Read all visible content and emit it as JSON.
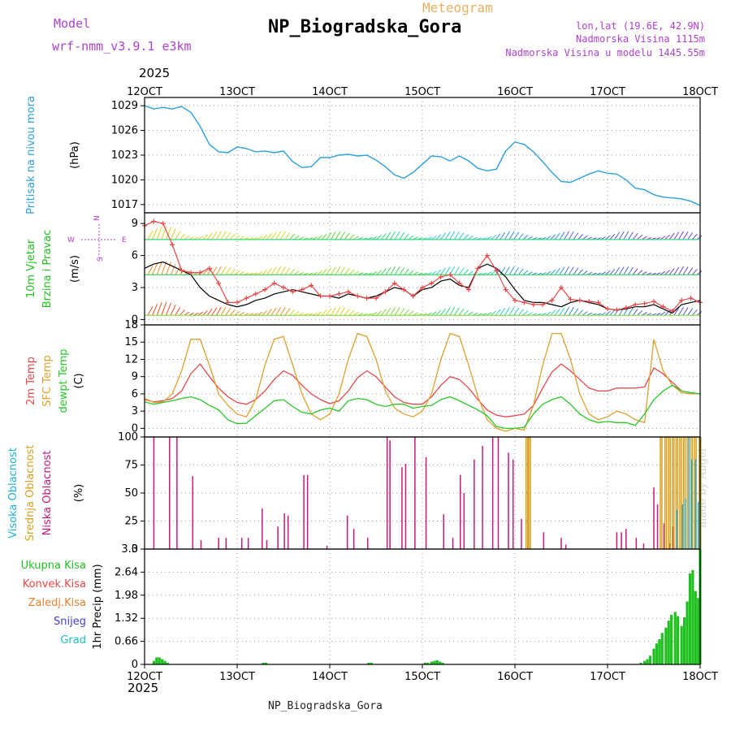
{
  "header": {
    "title": "NP_Biogradska_Gora",
    "subtitle": "Meteogram",
    "model_label": "Model",
    "model_name": "wrf-nmm_v3.9.1 e3km",
    "lonlat": "lon,lat (19.6E, 42.9N)",
    "altitude": "Nadmorska Visina 1115m",
    "model_altitude": "Nadmorska Visina u modelu 1445.55m",
    "year_top": "2025",
    "year_bottom": "2025",
    "footer": "NP_Biogradska_Gora",
    "credit": "made by Angel"
  },
  "legend_wind": {
    "north": "N",
    "west": "W",
    "east": "E",
    "south": "S"
  },
  "colors": {
    "pressure": "#2aa0e0",
    "temp2m": "#e84848",
    "sfc": "#e0a030",
    "dewpt": "#28c828",
    "low_cloud": "#c81878",
    "mid_cloud": "#d8a020",
    "high_cloud": "#20b0d8",
    "precip": "#20c020",
    "title_purple": "#b040d0",
    "meteogram_orange": "#e8b060"
  },
  "chart_data": [
    {
      "type": "line",
      "panel": "pressure",
      "ylabel": "(hPa)",
      "side_labels": [
        "Pritisak na nivou mora"
      ],
      "x_ticks": [
        "12OCT",
        "13OCT",
        "14OCT",
        "15OCT",
        "16OCT",
        "17OCT",
        "18OCT"
      ],
      "ylim": [
        1016,
        1030
      ],
      "yticks": [
        "1029",
        "1026",
        "1023",
        "1020",
        "1017"
      ],
      "x": [
        0,
        1,
        2,
        3,
        4,
        5,
        6,
        7,
        8,
        9,
        10,
        11,
        12,
        13,
        14,
        15,
        16,
        17,
        18,
        19,
        20,
        21,
        22,
        23,
        24,
        25,
        26,
        27,
        28,
        29,
        30,
        31,
        32,
        33,
        34,
        35,
        36,
        37,
        38,
        39,
        40,
        41,
        42,
        43,
        44,
        45,
        46,
        47,
        48,
        49,
        50,
        51,
        52,
        53,
        54,
        55,
        56,
        57,
        58,
        59,
        60
      ],
      "values": [
        1029,
        1028.6,
        1028.8,
        1028.6,
        1028.9,
        1028.2,
        1026.5,
        1024.3,
        1023.4,
        1023.3,
        1024,
        1023.8,
        1023.4,
        1023.5,
        1023.3,
        1023.5,
        1022.2,
        1021.5,
        1021.6,
        1022.7,
        1022.7,
        1023,
        1023.1,
        1022.9,
        1023,
        1022.4,
        1021.6,
        1020.6,
        1020.2,
        1020.9,
        1021.9,
        1022.9,
        1022.8,
        1022.3,
        1022.9,
        1022.3,
        1021.4,
        1021.1,
        1021.3,
        1023.5,
        1024.6,
        1024.3,
        1023.4,
        1022.2,
        1020.9,
        1019.8,
        1019.7,
        1020.2,
        1020.7,
        1021.1,
        1020.8,
        1020.7,
        1020,
        1019,
        1018.8,
        1018.2,
        1017.9,
        1017.8,
        1017.7,
        1017.4,
        1016.9
      ]
    },
    {
      "type": "line",
      "panel": "wind",
      "ylabel": "(m/s)",
      "side_labels": [
        "10m Vjetar",
        "Brzina i Pravac"
      ],
      "ylim": [
        -0.5,
        10
      ],
      "yticks": [
        "9",
        "6",
        "3",
        "0"
      ],
      "series": [
        {
          "name": "Brzina",
          "color": "#000000",
          "values": [
            4.8,
            5.2,
            5.4,
            5,
            4.6,
            4.2,
            3,
            2.2,
            1.8,
            1.4,
            1.2,
            1.4,
            1.8,
            2,
            2.4,
            2.6,
            2.8,
            2.6,
            2.4,
            2.2,
            2.2,
            2,
            2.4,
            2.2,
            2,
            2.2,
            2.6,
            3,
            2.8,
            2.2,
            2.8,
            3,
            3.6,
            3.8,
            3.2,
            3,
            4.8,
            5.2,
            4.8,
            4,
            2.8,
            1.8,
            1.6,
            1.6,
            1.4,
            1.2,
            1.6,
            1.8,
            1.6,
            1.4,
            1,
            0.9,
            1,
            1.2,
            1.2,
            1.4,
            1,
            0.6,
            1.4,
            1.6,
            1.8
          ]
        },
        {
          "name": "Udari",
          "color": "#e84848",
          "values": [
            8.8,
            9.2,
            9,
            7,
            4.6,
            4.4,
            4.4,
            4.8,
            3.4,
            1.6,
            1.6,
            2,
            2.4,
            2.8,
            3.4,
            3,
            2.6,
            2.8,
            3.2,
            2.2,
            2.2,
            2.4,
            2.6,
            2.2,
            2,
            2,
            2.6,
            3.4,
            2.8,
            2.2,
            3,
            3.4,
            4,
            4.2,
            3.4,
            2.8,
            4.8,
            6,
            4.6,
            2.8,
            1.8,
            1.6,
            1.4,
            1.4,
            1.8,
            3,
            1.9,
            1.8,
            1.7,
            1.6,
            1,
            0.9,
            1.1,
            1.4,
            1.5,
            1.7,
            1.2,
            0.8,
            1.8,
            2,
            1.6
          ]
        }
      ],
      "barb_rows": [
        {
          "level": 7.5,
          "colors": [
            "#d8d020",
            "#c8e020",
            "#60d838",
            "#30d880",
            "#30c8d8",
            "#3090e0",
            "#5060e0",
            "#8040d0"
          ]
        },
        {
          "level": 4.2,
          "colors": [
            "#e89030",
            "#e8c828",
            "#a0d830",
            "#40d860",
            "#30d0c0",
            "#3098e0",
            "#4868e0",
            "#7040d8"
          ]
        },
        {
          "level": 0.4,
          "colors": [
            "#e85028",
            "#e89028",
            "#e0d028",
            "#80d838",
            "#38d878",
            "#30c8d0",
            "#3088e0",
            "#5058e0"
          ]
        }
      ]
    },
    {
      "type": "line",
      "panel": "temperature",
      "ylabel": "(C)",
      "side_labels": [
        "2m Temp",
        "SFC Temp",
        "dewpt Temp"
      ],
      "ylim": [
        -1.5,
        18
      ],
      "yticks": [
        "18",
        "15",
        "12",
        "9",
        "6",
        "3",
        "0"
      ],
      "series": [
        {
          "name": "2m Temp",
          "color": "#e84848",
          "values": [
            5,
            4.6,
            4.8,
            5.2,
            6.5,
            9.5,
            11.2,
            9,
            7,
            5.5,
            4.5,
            4.2,
            5,
            6.5,
            8.5,
            10,
            9.2,
            7.5,
            6,
            5,
            4.3,
            4.8,
            6.5,
            8.8,
            10,
            9,
            7.2,
            5.5,
            4.5,
            4.2,
            4.2,
            5.5,
            7.5,
            9,
            8.5,
            7,
            5,
            3.2,
            2.3,
            2,
            2.2,
            2.5,
            4,
            7,
            9.8,
            11.2,
            10,
            8.5,
            7,
            6.5,
            6.5,
            7,
            7,
            7,
            7.2,
            10.5,
            9.5,
            8,
            6.5,
            6.2,
            6
          ]
        },
        {
          "name": "SFC Temp",
          "color": "#e0a030",
          "values": [
            5.2,
            4.5,
            4.6,
            6,
            10,
            15.5,
            15.5,
            11,
            6,
            4,
            2.5,
            2,
            5,
            11,
            15.5,
            16,
            11,
            6,
            2.5,
            1.5,
            2.5,
            6,
            12,
            16.5,
            16,
            12,
            6.5,
            3.5,
            2.5,
            2,
            3,
            6,
            12,
            16.5,
            16,
            11,
            5.5,
            1.5,
            0,
            -0.5,
            0,
            -0.3,
            4,
            11,
            16.5,
            16.5,
            12,
            6,
            2.5,
            1.5,
            2,
            3,
            2.5,
            1.5,
            1,
            15.5,
            10,
            7.5,
            6.2,
            6,
            6
          ]
        },
        {
          "name": "dewpt Temp",
          "color": "#28c828",
          "values": [
            4.6,
            4.2,
            4.5,
            4.8,
            5.2,
            5.5,
            5,
            4,
            3.2,
            1.5,
            0.8,
            0.9,
            2.2,
            3.5,
            4.8,
            5,
            3.8,
            2.8,
            2.5,
            3.2,
            3.5,
            3,
            4.8,
            5.2,
            5,
            4.2,
            3.8,
            4.2,
            4.2,
            3.5,
            3.8,
            4,
            5,
            5.5,
            4.8,
            4,
            3.2,
            2.2,
            0.3,
            0,
            0,
            0.2,
            2.5,
            4.2,
            5,
            5.5,
            4.2,
            2.5,
            1.5,
            1,
            1.2,
            1,
            1,
            0.5,
            2.5,
            5,
            6.5,
            7.5,
            6.5,
            6.2,
            6
          ]
        }
      ]
    },
    {
      "type": "bar",
      "panel": "clouds",
      "ylabel": "(%)",
      "side_labels": [
        "Visoka Oblacnost",
        "Srednja Oblacnost",
        "Niska Oblacnost"
      ],
      "ylim": [
        0,
        100
      ],
      "yticks": [
        "100",
        "75",
        "50",
        "25",
        "0"
      ],
      "series": [
        {
          "name": "Niska Oblacnost",
          "color": "#c81878",
          "bars": [
            [
              1,
              100
            ],
            [
              2.7,
              100
            ],
            [
              3.5,
              100
            ],
            [
              5.2,
              65
            ],
            [
              6.1,
              8
            ],
            [
              8,
              10
            ],
            [
              8.8,
              10
            ],
            [
              10.5,
              10
            ],
            [
              11.2,
              10
            ],
            [
              12.7,
              36
            ],
            [
              13.2,
              8
            ],
            [
              14.4,
              20
            ],
            [
              15.1,
              32
            ],
            [
              15.5,
              30
            ],
            [
              17.2,
              66
            ],
            [
              17.6,
              66
            ],
            [
              19.7,
              3
            ],
            [
              21.9,
              30
            ],
            [
              22.6,
              18
            ],
            [
              24.1,
              10
            ],
            [
              26.2,
              100
            ],
            [
              26.5,
              97
            ],
            [
              27.8,
              73
            ],
            [
              28.2,
              76
            ],
            [
              29.2,
              100
            ],
            [
              30.4,
              82
            ],
            [
              32.3,
              31
            ],
            [
              33.3,
              10
            ],
            [
              34.1,
              66
            ],
            [
              34.5,
              50
            ],
            [
              35.6,
              80
            ],
            [
              36.5,
              92
            ],
            [
              37.6,
              100
            ],
            [
              38.2,
              100
            ],
            [
              39.3,
              86
            ],
            [
              39.8,
              80
            ],
            [
              40.7,
              27
            ],
            [
              43.1,
              15
            ],
            [
              45,
              10
            ],
            [
              45.5,
              4
            ],
            [
              51,
              15
            ],
            [
              51.5,
              15
            ],
            [
              52,
              18
            ],
            [
              53.1,
              10
            ],
            [
              53.9,
              5
            ],
            [
              55,
              55
            ],
            [
              55.4,
              40
            ],
            [
              56.1,
              23
            ],
            [
              56.7,
              5
            ],
            [
              57.1,
              20
            ]
          ]
        },
        {
          "name": "Srednja Oblacnost",
          "color": "#d8a020",
          "bars": [
            [
              41.2,
              100
            ],
            [
              41.5,
              100
            ],
            [
              55.7,
              100
            ],
            [
              56.2,
              100
            ],
            [
              56.6,
              100
            ],
            [
              57,
              100
            ],
            [
              57.4,
              100
            ],
            [
              57.8,
              100
            ],
            [
              58.2,
              100
            ],
            [
              58.6,
              100
            ],
            [
              59,
              100
            ],
            [
              59.4,
              100
            ],
            [
              59.9,
              100
            ]
          ]
        },
        {
          "name": "Visoka Oblacnost",
          "color": "#20b0d8",
          "bars": [
            [
              57.5,
              35
            ],
            [
              58.1,
              40
            ],
            [
              58.4,
              45
            ],
            [
              58.8,
              100
            ],
            [
              59.1,
              80
            ],
            [
              59.5,
              80
            ],
            [
              59.8,
              42
            ],
            [
              60,
              100
            ]
          ]
        }
      ]
    },
    {
      "type": "bar",
      "panel": "precipitation",
      "ylabel": "1hr Precip (mm)",
      "side_labels": [
        "Ukupna Kisa",
        "Konvek.Kisa",
        "Zaledj.Kisa",
        "Snijeg",
        "Grad"
      ],
      "side_colors": [
        "#20c020",
        "#e84848",
        "#e88030",
        "#4040d8",
        "#20c0c0"
      ],
      "ylim": [
        0,
        3.3
      ],
      "yticks": [
        "3.3",
        "2.64",
        "1.98",
        "1.32",
        "0.66",
        "0"
      ],
      "bars": [
        [
          1,
          0.1
        ],
        [
          1.3,
          0.2
        ],
        [
          1.6,
          0.2
        ],
        [
          1.9,
          0.15
        ],
        [
          2.2,
          0.1
        ],
        [
          2.5,
          0.05
        ],
        [
          12.8,
          0.05
        ],
        [
          13.1,
          0.05
        ],
        [
          24.2,
          0.05
        ],
        [
          24.5,
          0.05
        ],
        [
          30.3,
          0.05
        ],
        [
          30.6,
          0.05
        ],
        [
          31,
          0.08
        ],
        [
          31.3,
          0.1
        ],
        [
          31.6,
          0.12
        ],
        [
          31.9,
          0.08
        ],
        [
          32.2,
          0.05
        ],
        [
          53.6,
          0.05
        ],
        [
          54,
          0.1
        ],
        [
          54.3,
          0.15
        ],
        [
          54.6,
          0.25
        ],
        [
          55,
          0.45
        ],
        [
          55.3,
          0.6
        ],
        [
          55.6,
          0.72
        ],
        [
          55.9,
          0.9
        ],
        [
          56.3,
          1.05
        ],
        [
          56.6,
          1.25
        ],
        [
          56.9,
          1.42
        ],
        [
          57.3,
          1.5
        ],
        [
          57.6,
          1.38
        ],
        [
          58,
          1.1
        ],
        [
          58.3,
          1.35
        ],
        [
          58.6,
          1.8
        ],
        [
          58.9,
          2.6
        ],
        [
          59.2,
          2.7
        ],
        [
          59.5,
          2.1
        ],
        [
          59.8,
          1.9
        ],
        [
          60,
          3.3
        ]
      ]
    }
  ]
}
